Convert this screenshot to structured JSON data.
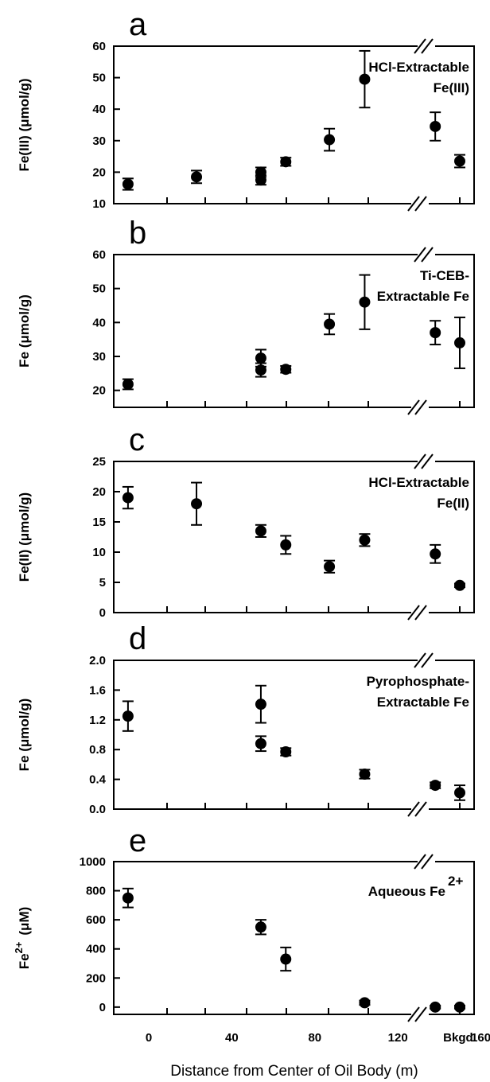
{
  "chart_data": [
    {
      "id": "a",
      "type": "scatter",
      "panel_label": "a",
      "annotation": [
        "HCl-Extractable",
        "Fe(III)"
      ],
      "ylabel": "Fe(III)  (μmol/g)",
      "ylim": [
        10,
        60
      ],
      "yticks": [
        "10",
        "20",
        "30",
        "40",
        "50",
        "60"
      ],
      "points": [
        {
          "x": -10,
          "y": 16.2,
          "err": 1.8
        },
        {
          "x": 23,
          "y": 18.5,
          "err": 2.0
        },
        {
          "x": 54,
          "y": 20.0,
          "err": 1.5
        },
        {
          "x": 54,
          "y": 17.5,
          "err": 1.5
        },
        {
          "x": 66,
          "y": 23.3,
          "err": 1.3
        },
        {
          "x": 87,
          "y": 30.3,
          "err": 3.5
        },
        {
          "x": 104,
          "y": 49.5,
          "err": 9.0
        },
        {
          "x": 138,
          "y": 34.5,
          "err": 4.5
        },
        {
          "x": "Bkgd.",
          "y": 23.5,
          "err": 2.0
        }
      ]
    },
    {
      "id": "b",
      "type": "scatter",
      "panel_label": "b",
      "annotation": [
        "Ti-CEB-",
        "Extractable Fe"
      ],
      "ylabel": "Fe  (μmol/g)",
      "ylim": [
        15,
        60
      ],
      "yticks": [
        "20",
        "30",
        "40",
        "50",
        "60"
      ],
      "points": [
        {
          "x": -10,
          "y": 21.8,
          "err": 1.5
        },
        {
          "x": 54,
          "y": 29.5,
          "err": 2.5
        },
        {
          "x": 54,
          "y": 26.0,
          "err": 2.0
        },
        {
          "x": 66,
          "y": 26.2,
          "err": 1.0
        },
        {
          "x": 87,
          "y": 39.5,
          "err": 3.0
        },
        {
          "x": 104,
          "y": 46.0,
          "err": 8.0
        },
        {
          "x": 138,
          "y": 37.0,
          "err": 3.5
        },
        {
          "x": "Bkgd.",
          "y": 34.0,
          "err": 7.5
        }
      ]
    },
    {
      "id": "c",
      "type": "scatter",
      "panel_label": "c",
      "annotation": [
        "HCl-Extractable",
        "Fe(II)"
      ],
      "ylabel": "Fe(II)  (μmol/g)",
      "ylim": [
        0,
        25
      ],
      "yticks": [
        "0",
        "5",
        "10",
        "15",
        "20",
        "25"
      ],
      "points": [
        {
          "x": -10,
          "y": 19.0,
          "err": 1.8
        },
        {
          "x": 23,
          "y": 18.0,
          "err": 3.5
        },
        {
          "x": 54,
          "y": 13.5,
          "err": 1.0
        },
        {
          "x": 66,
          "y": 11.2,
          "err": 1.5
        },
        {
          "x": 87,
          "y": 7.6,
          "err": 1.0
        },
        {
          "x": 104,
          "y": 12.0,
          "err": 1.0
        },
        {
          "x": 138,
          "y": 9.7,
          "err": 1.5
        },
        {
          "x": "Bkgd.",
          "y": 4.5,
          "err": 0.3
        }
      ]
    },
    {
      "id": "d",
      "type": "scatter",
      "panel_label": "d",
      "annotation": [
        "Pyrophosphate-",
        "Extractable Fe"
      ],
      "ylabel": "Fe (μmol/g)",
      "ylim": [
        0,
        2
      ],
      "yticks": [
        "0.0",
        "0.4",
        "0.8",
        "1.2",
        "1.6",
        "2.0"
      ],
      "points": [
        {
          "x": -10,
          "y": 1.25,
          "err": 0.2
        },
        {
          "x": 54,
          "y": 1.41,
          "err": 0.25
        },
        {
          "x": 54,
          "y": 0.88,
          "err": 0.1
        },
        {
          "x": 66,
          "y": 0.77,
          "err": 0.05
        },
        {
          "x": 104,
          "y": 0.47,
          "err": 0.06
        },
        {
          "x": 138,
          "y": 0.32,
          "err": 0.04
        },
        {
          "x": "Bkgd.",
          "y": 0.22,
          "err": 0.1
        }
      ]
    },
    {
      "id": "e",
      "type": "scatter",
      "panel_label": "e",
      "annotation": [
        "Aqueous Fe",
        "2+"
      ],
      "ylabel": [
        "Fe",
        "2+",
        "(μM)"
      ],
      "ylim": [
        -50,
        1000
      ],
      "yticks": [
        "0",
        "200",
        "400",
        "600",
        "800",
        "1000"
      ],
      "xticks": [
        "0",
        "40",
        "80",
        "120",
        "160",
        "Bkgd."
      ],
      "xlabel": "Distance from Center of Oil Body  (m)",
      "points": [
        {
          "x": -10,
          "y": 750,
          "err": 65
        },
        {
          "x": 54,
          "y": 550,
          "err": 50
        },
        {
          "x": 66,
          "y": 330,
          "err": 80
        },
        {
          "x": 104,
          "y": 30,
          "err": 15
        },
        {
          "x": 138,
          "y": 0,
          "err": 10
        },
        {
          "x": "Bkgd.",
          "y": 0,
          "err": 10
        }
      ]
    }
  ]
}
